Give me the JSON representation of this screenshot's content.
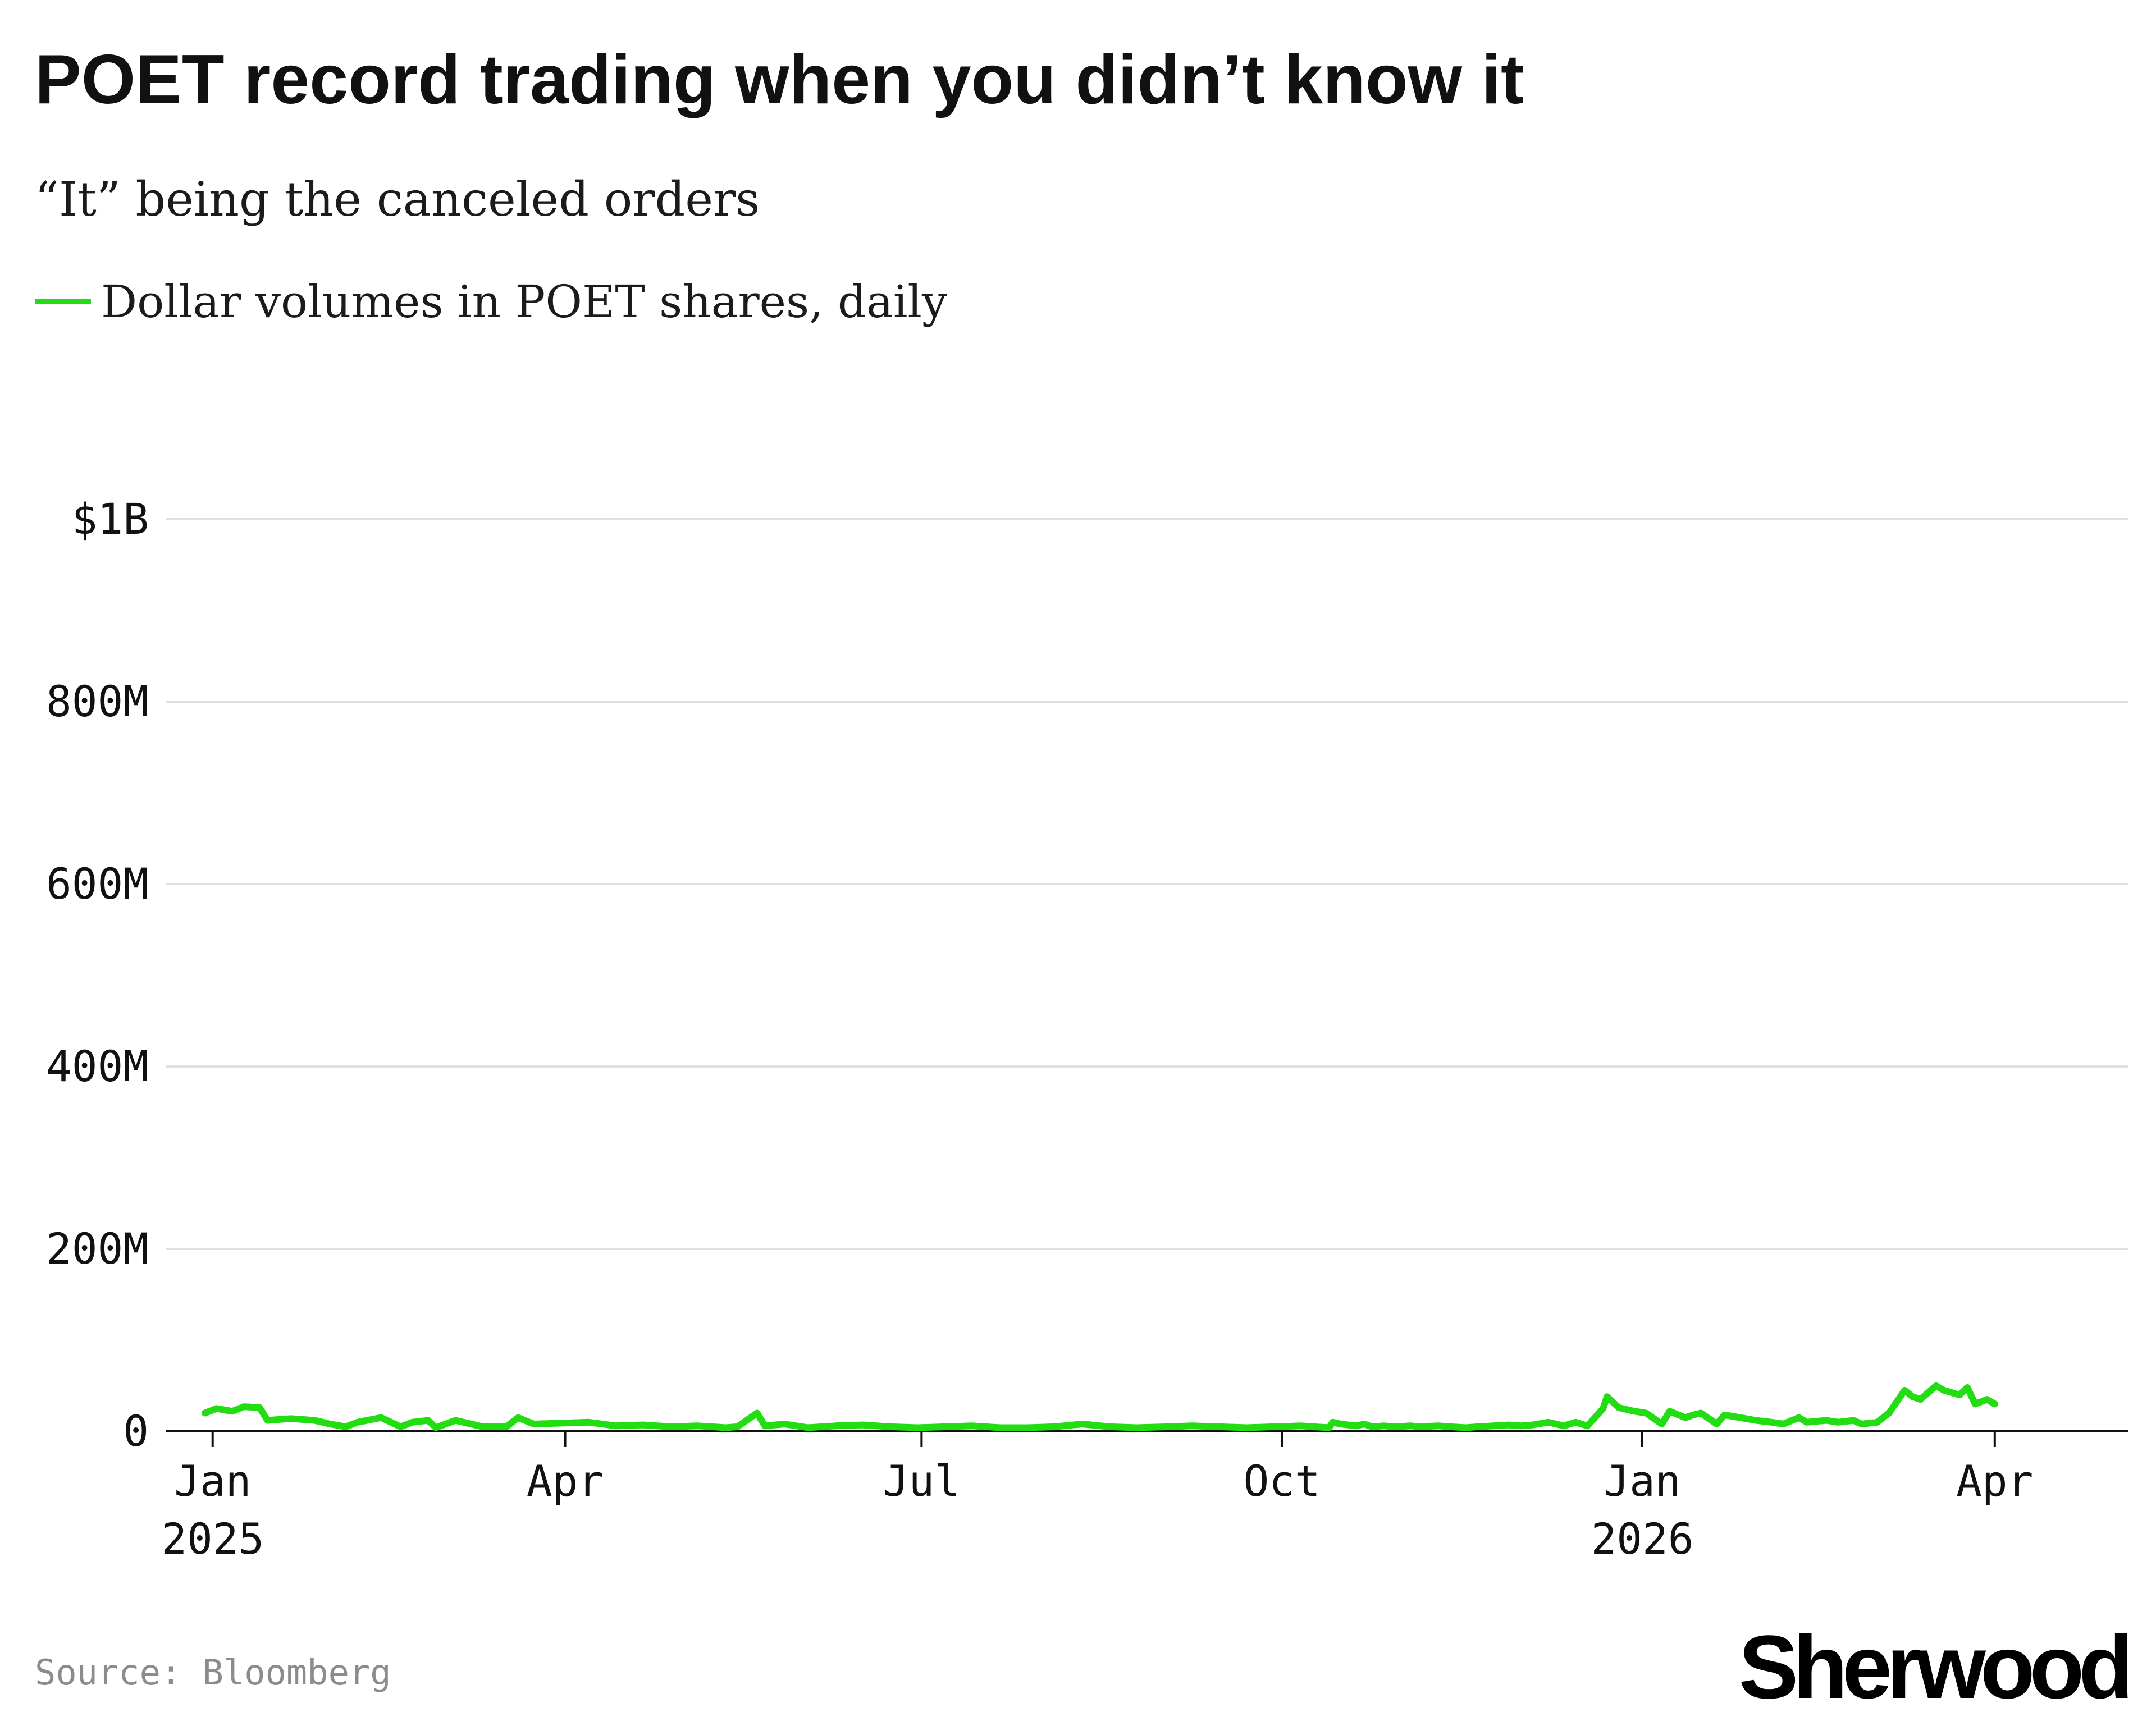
{
  "title": "POET record trading when you didn’t know it",
  "subtitle": "“It” being the canceled orders",
  "source": "Source: Bloomberg",
  "logo": "Sherwood",
  "colors": {
    "series": "#22dd11",
    "grid": "#e0e0e0",
    "axis": "#111111",
    "background": "#ffffff"
  },
  "chart_data": {
    "type": "line",
    "title": "POET record trading when you didn’t know it",
    "subtitle": "“It” being the canceled orders",
    "legend": "top-left",
    "grid": true,
    "x_range": [
      "2024-12-20",
      "2026-05-05"
    ],
    "ylim": [
      0,
      1200
    ],
    "y_unit": "millions of dollars",
    "y_ticks": [
      {
        "value": 0,
        "label": "0"
      },
      {
        "value": 200,
        "label": "200M"
      },
      {
        "value": 400,
        "label": "400M"
      },
      {
        "value": 600,
        "label": "600M"
      },
      {
        "value": 800,
        "label": "800M"
      },
      {
        "value": 1000,
        "label": "$1B"
      }
    ],
    "x_ticks": [
      {
        "date": "2025-01-01",
        "label": "Jan",
        "sublabel": "2025"
      },
      {
        "date": "2025-04-01",
        "label": "Apr",
        "sublabel": ""
      },
      {
        "date": "2025-07-01",
        "label": "Jul",
        "sublabel": ""
      },
      {
        "date": "2025-10-01",
        "label": "Oct",
        "sublabel": ""
      },
      {
        "date": "2026-01-01",
        "label": "Jan",
        "sublabel": "2026"
      },
      {
        "date": "2026-04-01",
        "label": "Apr",
        "sublabel": ""
      }
    ],
    "series": [
      {
        "name": "Dollar volumes in POET shares, daily",
        "points": [
          [
            "2024-12-30",
            20
          ],
          [
            "2025-01-02",
            25
          ],
          [
            "2025-01-06",
            22
          ],
          [
            "2025-01-09",
            27
          ],
          [
            "2025-01-13",
            26
          ],
          [
            "2025-01-15",
            12
          ],
          [
            "2025-01-21",
            14
          ],
          [
            "2025-01-27",
            12
          ],
          [
            "2025-01-31",
            8
          ],
          [
            "2025-02-04",
            5
          ],
          [
            "2025-02-07",
            10
          ],
          [
            "2025-02-13",
            15
          ],
          [
            "2025-02-18",
            5
          ],
          [
            "2025-02-21",
            10
          ],
          [
            "2025-02-25",
            12
          ],
          [
            "2025-02-27",
            4
          ],
          [
            "2025-03-04",
            12
          ],
          [
            "2025-03-07",
            9
          ],
          [
            "2025-03-11",
            5
          ],
          [
            "2025-03-17",
            5
          ],
          [
            "2025-03-20",
            15
          ],
          [
            "2025-03-24",
            8
          ],
          [
            "2025-03-31",
            9
          ],
          [
            "2025-04-07",
            10
          ],
          [
            "2025-04-14",
            6
          ],
          [
            "2025-04-21",
            7
          ],
          [
            "2025-04-28",
            5
          ],
          [
            "2025-05-05",
            6
          ],
          [
            "2025-05-12",
            4
          ],
          [
            "2025-05-15",
            5
          ],
          [
            "2025-05-20",
            20
          ],
          [
            "2025-05-22",
            6
          ],
          [
            "2025-05-27",
            8
          ],
          [
            "2025-06-02",
            4
          ],
          [
            "2025-06-09",
            6
          ],
          [
            "2025-06-16",
            7
          ],
          [
            "2025-06-23",
            5
          ],
          [
            "2025-06-30",
            4
          ],
          [
            "2025-07-07",
            5
          ],
          [
            "2025-07-14",
            6
          ],
          [
            "2025-07-21",
            4
          ],
          [
            "2025-07-28",
            4
          ],
          [
            "2025-08-04",
            5
          ],
          [
            "2025-08-11",
            8
          ],
          [
            "2025-08-18",
            5
          ],
          [
            "2025-08-25",
            4
          ],
          [
            "2025-09-02",
            5
          ],
          [
            "2025-09-08",
            6
          ],
          [
            "2025-09-15",
            5
          ],
          [
            "2025-09-22",
            4
          ],
          [
            "2025-09-29",
            5
          ],
          [
            "2025-10-06",
            6
          ],
          [
            "2025-10-09",
            5
          ],
          [
            "2025-10-13",
            4
          ],
          [
            "2025-10-14",
            10
          ],
          [
            "2025-10-16",
            8
          ],
          [
            "2025-10-20",
            6
          ],
          [
            "2025-10-22",
            8
          ],
          [
            "2025-10-24",
            5
          ],
          [
            "2025-10-27",
            6
          ],
          [
            "2025-10-30",
            5
          ],
          [
            "2025-11-03",
            6
          ],
          [
            "2025-11-05",
            5
          ],
          [
            "2025-11-10",
            6
          ],
          [
            "2025-11-13",
            5
          ],
          [
            "2025-11-17",
            4
          ],
          [
            "2025-11-20",
            5
          ],
          [
            "2025-11-24",
            6
          ],
          [
            "2025-11-28",
            7
          ],
          [
            "2025-12-01",
            6
          ],
          [
            "2025-12-04",
            7
          ],
          [
            "2025-12-08",
            10
          ],
          [
            "2025-12-10",
            8
          ],
          [
            "2025-12-12",
            6
          ],
          [
            "2025-12-15",
            10
          ],
          [
            "2025-12-18",
            6
          ],
          [
            "2025-12-22",
            25
          ],
          [
            "2025-12-23",
            38
          ],
          [
            "2025-12-26",
            26
          ],
          [
            "2025-12-30",
            22
          ],
          [
            "2026-01-02",
            20
          ],
          [
            "2026-01-06",
            8
          ],
          [
            "2026-01-08",
            22
          ],
          [
            "2026-01-12",
            15
          ],
          [
            "2026-01-14",
            18
          ],
          [
            "2026-01-16",
            20
          ],
          [
            "2026-01-20",
            8
          ],
          [
            "2026-01-22",
            18
          ],
          [
            "2026-01-26",
            15
          ],
          [
            "2026-01-30",
            12
          ],
          [
            "2026-02-03",
            10
          ],
          [
            "2026-02-06",
            8
          ],
          [
            "2026-02-10",
            15
          ],
          [
            "2026-02-12",
            10
          ],
          [
            "2026-02-17",
            12
          ],
          [
            "2026-02-20",
            10
          ],
          [
            "2026-02-24",
            12
          ],
          [
            "2026-02-26",
            8
          ],
          [
            "2026-03-02",
            10
          ],
          [
            "2026-03-05",
            20
          ],
          [
            "2026-03-09",
            45
          ],
          [
            "2026-03-11",
            38
          ],
          [
            "2026-03-13",
            35
          ],
          [
            "2026-03-17",
            50
          ],
          [
            "2026-03-19",
            45
          ],
          [
            "2026-03-23",
            40
          ],
          [
            "2026-03-25",
            48
          ],
          [
            "2026-03-27",
            30
          ],
          [
            "2026-03-30",
            35
          ],
          [
            "2026-04-01",
            30
          ]
        ]
      }
    ]
  },
  "chart_points_note": ""
}
